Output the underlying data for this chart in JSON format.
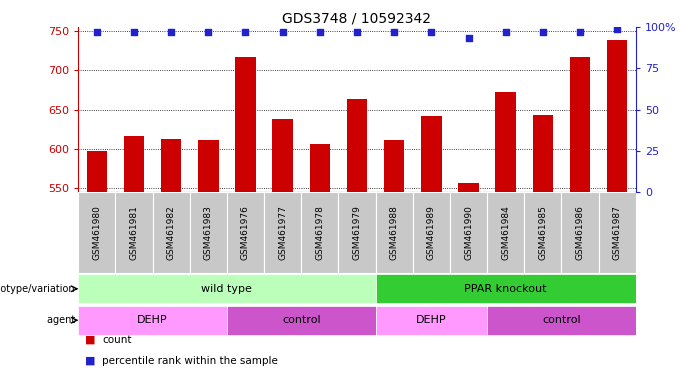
{
  "title": "GDS3748 / 10592342",
  "samples": [
    "GSM461980",
    "GSM461981",
    "GSM461982",
    "GSM461983",
    "GSM461976",
    "GSM461977",
    "GSM461978",
    "GSM461979",
    "GSM461988",
    "GSM461989",
    "GSM461990",
    "GSM461984",
    "GSM461985",
    "GSM461986",
    "GSM461987"
  ],
  "counts": [
    597,
    617,
    613,
    612,
    717,
    638,
    607,
    663,
    611,
    642,
    557,
    673,
    643,
    717,
    738
  ],
  "percentile_ranks": [
    97,
    97,
    97,
    97,
    97,
    97,
    97,
    97,
    97,
    97,
    93,
    97,
    97,
    97,
    99
  ],
  "ylim_left": [
    545,
    755
  ],
  "ylim_right": [
    0,
    100
  ],
  "yticks_left": [
    550,
    600,
    650,
    700,
    750
  ],
  "yticks_right": [
    0,
    25,
    50,
    75,
    100
  ],
  "bar_color": "#cc0000",
  "dot_color": "#2222cc",
  "bar_width": 0.55,
  "genotype_groups": [
    {
      "label": "wild type",
      "start": 0,
      "end": 8,
      "color": "#bbffbb"
    },
    {
      "label": "PPAR knockout",
      "start": 8,
      "end": 15,
      "color": "#33cc33"
    }
  ],
  "agent_groups": [
    {
      "label": "DEHP",
      "start": 0,
      "end": 4,
      "color": "#ff99ff"
    },
    {
      "label": "control",
      "start": 4,
      "end": 8,
      "color": "#cc55cc"
    },
    {
      "label": "DEHP",
      "start": 8,
      "end": 11,
      "color": "#ff99ff"
    },
    {
      "label": "control",
      "start": 11,
      "end": 15,
      "color": "#cc55cc"
    }
  ],
  "legend_count_color": "#cc0000",
  "legend_dot_color": "#2222cc",
  "xlabel_genotype": "genotype/variation",
  "xlabel_agent": "agent",
  "background_color": "#ffffff",
  "axis_color_left": "#cc0000",
  "axis_color_right": "#2222cc",
  "sample_bg_color": "#c8c8c8",
  "grid_color": "#000000",
  "title_fontsize": 10,
  "tick_fontsize": 8,
  "label_fontsize": 8,
  "sample_fontsize": 6.5
}
